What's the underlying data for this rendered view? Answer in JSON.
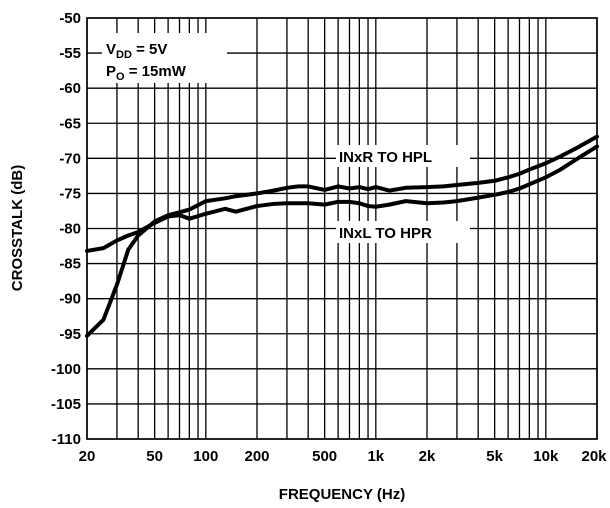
{
  "chart_data": {
    "type": "line",
    "xlabel": "FREQUENCY (Hz)",
    "ylabel": "CROSSTALK (dB)",
    "x_scale": "log",
    "xlim": [
      20,
      20000
    ],
    "ylim": [
      -110,
      -50
    ],
    "grid": true,
    "x_ticks": [
      {
        "value": 20,
        "label": "20"
      },
      {
        "value": 50,
        "label": "50"
      },
      {
        "value": 100,
        "label": "100"
      },
      {
        "value": 200,
        "label": "200"
      },
      {
        "value": 500,
        "label": "500"
      },
      {
        "value": 1000,
        "label": "1k"
      },
      {
        "value": 2000,
        "label": "2k"
      },
      {
        "value": 5000,
        "label": "5k"
      },
      {
        "value": 10000,
        "label": "10k"
      },
      {
        "value": 20000,
        "label": "20k"
      }
    ],
    "y_ticks": [
      -50,
      -55,
      -60,
      -65,
      -70,
      -75,
      -80,
      -85,
      -90,
      -95,
      -100,
      -105,
      -110
    ],
    "conditions": {
      "line1_main": "V",
      "line1_sub": "DD",
      "line1_rest": " = 5V",
      "line2_main": "P",
      "line2_sub": "O",
      "line2_rest": " = 15mW"
    },
    "series": [
      {
        "name": "INxR TO HPL",
        "x": [
          20,
          25,
          30,
          35,
          40,
          50,
          60,
          70,
          80,
          100,
          130,
          150,
          200,
          250,
          300,
          350,
          400,
          500,
          600,
          700,
          800,
          900,
          1000,
          1200,
          1500,
          2000,
          2500,
          3000,
          4000,
          5000,
          6000,
          7000,
          8000,
          10000,
          12000,
          15000,
          20000
        ],
        "y": [
          -95.3,
          -93,
          -88,
          -83,
          -81,
          -79,
          -78.1,
          -77.7,
          -77.3,
          -76.1,
          -75.7,
          -75.4,
          -75,
          -74.6,
          -74.2,
          -74,
          -74,
          -74.5,
          -74,
          -74.3,
          -74.1,
          -74.4,
          -74.1,
          -74.6,
          -74.2,
          -74.1,
          -74,
          -73.8,
          -73.5,
          -73.2,
          -72.7,
          -72.2,
          -71.6,
          -70.7,
          -69.8,
          -68.6,
          -66.9
        ]
      },
      {
        "name": "INxL TO HPR",
        "x": [
          20,
          25,
          30,
          35,
          40,
          50,
          60,
          70,
          80,
          100,
          130,
          150,
          200,
          250,
          300,
          350,
          400,
          500,
          600,
          700,
          800,
          900,
          1000,
          1200,
          1500,
          2000,
          2500,
          3000,
          4000,
          5000,
          6000,
          7000,
          8000,
          10000,
          12000,
          15000,
          20000
        ],
        "y": [
          -83.2,
          -82.8,
          -81.7,
          -81,
          -80.5,
          -79.2,
          -78.3,
          -78.1,
          -78.6,
          -77.9,
          -77.2,
          -77.6,
          -76.8,
          -76.5,
          -76.4,
          -76.4,
          -76.4,
          -76.6,
          -76.2,
          -76.2,
          -76.4,
          -76.8,
          -76.9,
          -76.6,
          -76.1,
          -76.4,
          -76.3,
          -76.1,
          -75.6,
          -75.2,
          -74.8,
          -74.3,
          -73.7,
          -72.7,
          -71.7,
          -70.2,
          -68.3
        ]
      }
    ],
    "annotations": [
      {
        "text": "INxR TO HPL",
        "series": 0
      },
      {
        "text": "INxL TO HPR",
        "series": 1
      }
    ]
  }
}
